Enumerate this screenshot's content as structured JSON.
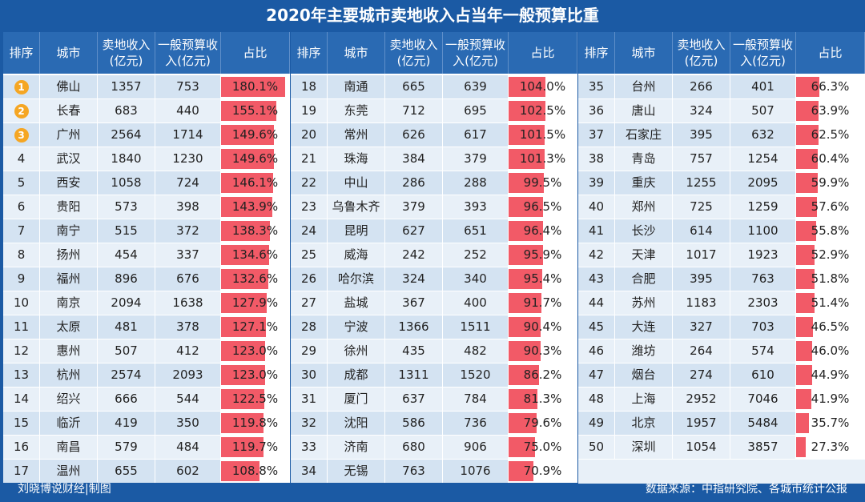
{
  "title": "2020年主要城市卖地收入占当年一般预算比重",
  "headers": {
    "rank": "排序",
    "city": "城市",
    "land_income": "卖地收入(亿元)",
    "budget": "一般预算收入(亿元)",
    "ratio": "占比"
  },
  "footer": {
    "author": "刘晓博说财经|制图",
    "source": "数据来源：中指研究院、各城市统计公报"
  },
  "colors": {
    "background": "#1b5aa4",
    "bar": "#f25a67",
    "badge": "#f5a623"
  },
  "chart_data": {
    "type": "table",
    "columns": [
      "排序",
      "城市",
      "卖地收入(亿元)",
      "一般预算收入(亿元)",
      "占比"
    ],
    "rows": [
      {
        "rank": "1",
        "city": "佛山",
        "land": "1357",
        "budget": "753",
        "ratio": "180.1%",
        "value": 180.1
      },
      {
        "rank": "2",
        "city": "长春",
        "land": "683",
        "budget": "440",
        "ratio": "155.1%",
        "value": 155.1
      },
      {
        "rank": "3",
        "city": "广州",
        "land": "2564",
        "budget": "1714",
        "ratio": "149.6%",
        "value": 149.6
      },
      {
        "rank": "4",
        "city": "武汉",
        "land": "1840",
        "budget": "1230",
        "ratio": "149.6%",
        "value": 149.6
      },
      {
        "rank": "5",
        "city": "西安",
        "land": "1058",
        "budget": "724",
        "ratio": "146.1%",
        "value": 146.1
      },
      {
        "rank": "6",
        "city": "贵阳",
        "land": "573",
        "budget": "398",
        "ratio": "143.9%",
        "value": 143.9
      },
      {
        "rank": "7",
        "city": "南宁",
        "land": "515",
        "budget": "372",
        "ratio": "138.3%",
        "value": 138.3
      },
      {
        "rank": "8",
        "city": "扬州",
        "land": "454",
        "budget": "337",
        "ratio": "134.6%",
        "value": 134.6
      },
      {
        "rank": "9",
        "city": "福州",
        "land": "896",
        "budget": "676",
        "ratio": "132.6%",
        "value": 132.6
      },
      {
        "rank": "10",
        "city": "南京",
        "land": "2094",
        "budget": "1638",
        "ratio": "127.9%",
        "value": 127.9
      },
      {
        "rank": "11",
        "city": "太原",
        "land": "481",
        "budget": "378",
        "ratio": "127.1%",
        "value": 127.1
      },
      {
        "rank": "12",
        "city": "惠州",
        "land": "507",
        "budget": "412",
        "ratio": "123.0%",
        "value": 123.0
      },
      {
        "rank": "13",
        "city": "杭州",
        "land": "2574",
        "budget": "2093",
        "ratio": "123.0%",
        "value": 123.0
      },
      {
        "rank": "14",
        "city": "绍兴",
        "land": "666",
        "budget": "544",
        "ratio": "122.5%",
        "value": 122.5
      },
      {
        "rank": "15",
        "city": "临沂",
        "land": "419",
        "budget": "350",
        "ratio": "119.8%",
        "value": 119.8
      },
      {
        "rank": "16",
        "city": "南昌",
        "land": "579",
        "budget": "484",
        "ratio": "119.7%",
        "value": 119.7
      },
      {
        "rank": "17",
        "city": "温州",
        "land": "655",
        "budget": "602",
        "ratio": "108.8%",
        "value": 108.8
      },
      {
        "rank": "18",
        "city": "南通",
        "land": "665",
        "budget": "639",
        "ratio": "104.0%",
        "value": 104.0
      },
      {
        "rank": "19",
        "city": "东莞",
        "land": "712",
        "budget": "695",
        "ratio": "102.5%",
        "value": 102.5
      },
      {
        "rank": "20",
        "city": "常州",
        "land": "626",
        "budget": "617",
        "ratio": "101.5%",
        "value": 101.5
      },
      {
        "rank": "21",
        "city": "珠海",
        "land": "384",
        "budget": "379",
        "ratio": "101.3%",
        "value": 101.3
      },
      {
        "rank": "22",
        "city": "中山",
        "land": "286",
        "budget": "288",
        "ratio": "99.5%",
        "value": 99.5
      },
      {
        "rank": "23",
        "city": "乌鲁木齐",
        "land": "379",
        "budget": "393",
        "ratio": "96.5%",
        "value": 96.5
      },
      {
        "rank": "24",
        "city": "昆明",
        "land": "627",
        "budget": "651",
        "ratio": "96.4%",
        "value": 96.4
      },
      {
        "rank": "25",
        "city": "威海",
        "land": "242",
        "budget": "252",
        "ratio": "95.9%",
        "value": 95.9
      },
      {
        "rank": "26",
        "city": "哈尔滨",
        "land": "324",
        "budget": "340",
        "ratio": "95.4%",
        "value": 95.4
      },
      {
        "rank": "27",
        "city": "盐城",
        "land": "367",
        "budget": "400",
        "ratio": "91.7%",
        "value": 91.7
      },
      {
        "rank": "28",
        "city": "宁波",
        "land": "1366",
        "budget": "1511",
        "ratio": "90.4%",
        "value": 90.4
      },
      {
        "rank": "29",
        "city": "徐州",
        "land": "435",
        "budget": "482",
        "ratio": "90.3%",
        "value": 90.3
      },
      {
        "rank": "30",
        "city": "成都",
        "land": "1311",
        "budget": "1520",
        "ratio": "86.2%",
        "value": 86.2
      },
      {
        "rank": "31",
        "city": "厦门",
        "land": "637",
        "budget": "784",
        "ratio": "81.3%",
        "value": 81.3
      },
      {
        "rank": "32",
        "city": "沈阳",
        "land": "586",
        "budget": "736",
        "ratio": "79.6%",
        "value": 79.6
      },
      {
        "rank": "33",
        "city": "济南",
        "land": "680",
        "budget": "906",
        "ratio": "75.0%",
        "value": 75.0
      },
      {
        "rank": "34",
        "city": "无锡",
        "land": "763",
        "budget": "1076",
        "ratio": "70.9%",
        "value": 70.9
      },
      {
        "rank": "35",
        "city": "台州",
        "land": "266",
        "budget": "401",
        "ratio": "66.3%",
        "value": 66.3
      },
      {
        "rank": "36",
        "city": "唐山",
        "land": "324",
        "budget": "507",
        "ratio": "63.9%",
        "value": 63.9
      },
      {
        "rank": "37",
        "city": "石家庄",
        "land": "395",
        "budget": "632",
        "ratio": "62.5%",
        "value": 62.5
      },
      {
        "rank": "38",
        "city": "青岛",
        "land": "757",
        "budget": "1254",
        "ratio": "60.4%",
        "value": 60.4
      },
      {
        "rank": "39",
        "city": "重庆",
        "land": "1255",
        "budget": "2095",
        "ratio": "59.9%",
        "value": 59.9
      },
      {
        "rank": "40",
        "city": "郑州",
        "land": "725",
        "budget": "1259",
        "ratio": "57.6%",
        "value": 57.6
      },
      {
        "rank": "41",
        "city": "长沙",
        "land": "614",
        "budget": "1100",
        "ratio": "55.8%",
        "value": 55.8
      },
      {
        "rank": "42",
        "city": "天津",
        "land": "1017",
        "budget": "1923",
        "ratio": "52.9%",
        "value": 52.9
      },
      {
        "rank": "43",
        "city": "合肥",
        "land": "395",
        "budget": "763",
        "ratio": "51.8%",
        "value": 51.8
      },
      {
        "rank": "44",
        "city": "苏州",
        "land": "1183",
        "budget": "2303",
        "ratio": "51.4%",
        "value": 51.4
      },
      {
        "rank": "45",
        "city": "大连",
        "land": "327",
        "budget": "703",
        "ratio": "46.5%",
        "value": 46.5
      },
      {
        "rank": "46",
        "city": "潍坊",
        "land": "264",
        "budget": "574",
        "ratio": "46.0%",
        "value": 46.0
      },
      {
        "rank": "47",
        "city": "烟台",
        "land": "274",
        "budget": "610",
        "ratio": "44.9%",
        "value": 44.9
      },
      {
        "rank": "48",
        "city": "上海",
        "land": "2952",
        "budget": "7046",
        "ratio": "41.9%",
        "value": 41.9
      },
      {
        "rank": "49",
        "city": "北京",
        "land": "1957",
        "budget": "5484",
        "ratio": "35.7%",
        "value": 35.7
      },
      {
        "rank": "50",
        "city": "深圳",
        "land": "1054",
        "budget": "3857",
        "ratio": "27.3%",
        "value": 27.3
      }
    ],
    "bar_max": 180.1
  }
}
